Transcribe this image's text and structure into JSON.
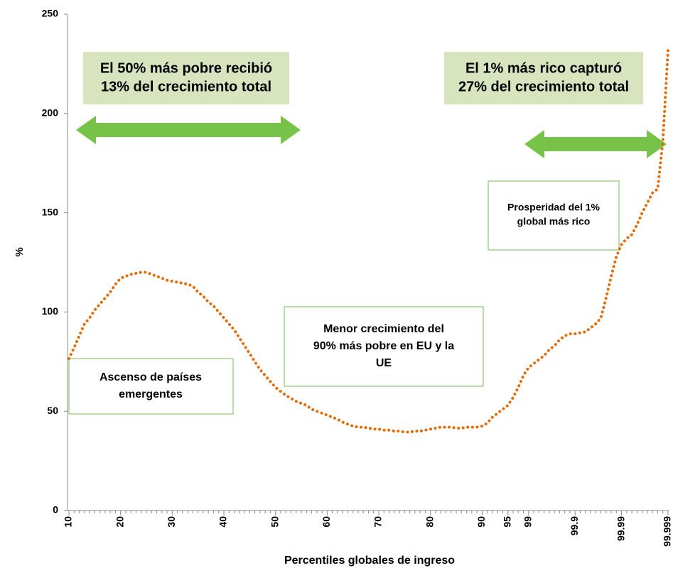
{
  "chart_data": {
    "type": "line",
    "x_label": "Percentiles globales de ingreso",
    "y_label": "%",
    "categories": [
      "10",
      null,
      null,
      null,
      null,
      null,
      null,
      null,
      null,
      null,
      "20",
      null,
      null,
      null,
      null,
      null,
      null,
      null,
      null,
      null,
      "30",
      null,
      null,
      null,
      null,
      null,
      null,
      null,
      null,
      null,
      "40",
      null,
      null,
      null,
      null,
      null,
      null,
      null,
      null,
      null,
      "50",
      null,
      null,
      null,
      null,
      null,
      null,
      null,
      null,
      null,
      "60",
      null,
      null,
      null,
      null,
      null,
      null,
      null,
      null,
      null,
      "70",
      null,
      null,
      null,
      null,
      null,
      null,
      null,
      null,
      null,
      "80",
      null,
      null,
      null,
      null,
      null,
      null,
      null,
      null,
      null,
      "90",
      null,
      null,
      null,
      null,
      "95",
      null,
      null,
      null,
      "99",
      null,
      null,
      null,
      null,
      null,
      null,
      null,
      null,
      "99.9",
      null,
      null,
      null,
      null,
      null,
      null,
      null,
      null,
      "99.99",
      null,
      null,
      null,
      null,
      null,
      null,
      null,
      null,
      "99.999"
    ],
    "series": [
      {
        "color": "#e36c09",
        "values": [
          76.5,
          82,
          88,
          94,
          97,
          101,
          104,
          107,
          110,
          114,
          117,
          118,
          119,
          119.5,
          120,
          120,
          119,
          118,
          117,
          116,
          115.5,
          115,
          114.5,
          114,
          113,
          110,
          108,
          105,
          103,
          100,
          97,
          94,
          91,
          87,
          83,
          79,
          75,
          71,
          68,
          65,
          62,
          60,
          58,
          56.5,
          55,
          54,
          53,
          51,
          50,
          49,
          48,
          47,
          46,
          44.5,
          43.5,
          42.5,
          42,
          42,
          41.5,
          41,
          41,
          40.5,
          40.5,
          40,
          40,
          39.5,
          39.5,
          40,
          40,
          40.5,
          41,
          41.5,
          42,
          42,
          42,
          41.5,
          41.5,
          42,
          42,
          42,
          42.5,
          44,
          47,
          49,
          51,
          53,
          57,
          62,
          68,
          72,
          74,
          76,
          78,
          81,
          83,
          86,
          88,
          89,
          89,
          89.5,
          90,
          92,
          94,
          97,
          107,
          118,
          128,
          134,
          137,
          139,
          144,
          150,
          155,
          160,
          162,
          186,
          232
        ]
      }
    ],
    "ylim": [
      0,
      250
    ],
    "yticks": [
      0,
      50,
      100,
      150,
      200,
      250
    ],
    "annotations": [
      {
        "lines": [
          "El 50% más pobre recibió",
          "13% del crecimiento total"
        ]
      },
      {
        "lines": [
          "El 1% más rico capturó",
          "27% del crecimiento total"
        ]
      },
      {
        "lines": [
          "Prosperidad del 1%",
          "global más rico"
        ]
      },
      {
        "lines": [
          "Menor crecimiento del",
          "90% más pobre en EU y la",
          "UE"
        ]
      },
      {
        "lines": [
          "Ascenso de países",
          "emergentes"
        ]
      }
    ]
  }
}
